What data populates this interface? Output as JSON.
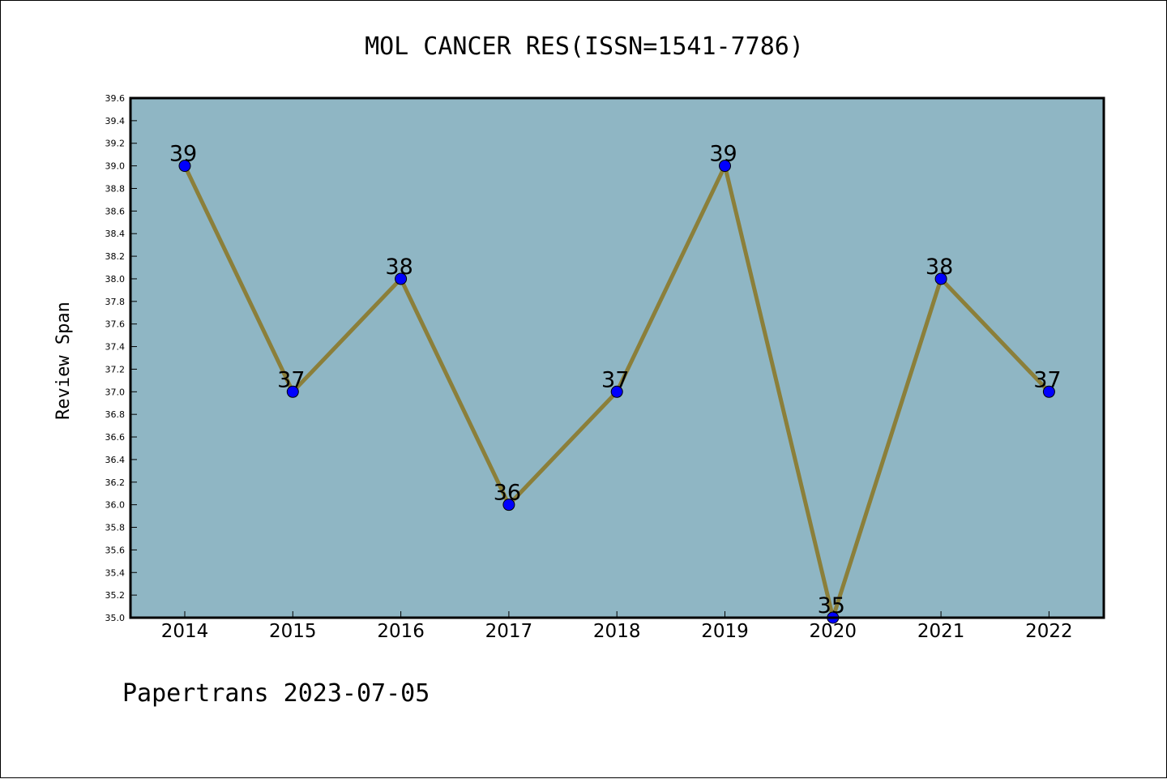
{
  "chart_data": {
    "type": "line",
    "title": "MOL CANCER RES(ISSN=1541-7786)",
    "xlabel": "",
    "ylabel": "Review Span",
    "categories": [
      "2014",
      "2015",
      "2016",
      "2017",
      "2018",
      "2019",
      "2020",
      "2021",
      "2022"
    ],
    "series": [
      {
        "values": [
          39,
          37,
          38,
          36,
          37,
          39,
          35,
          38,
          37
        ]
      }
    ],
    "data_labels": [
      "39",
      "37",
      "38",
      "36",
      "37",
      "39",
      "35",
      "38",
      "37"
    ],
    "ylim": [
      35.0,
      39.6
    ],
    "ytick_labels": [
      "35.0",
      "35.2",
      "35.4",
      "35.6",
      "35.8",
      "36.0",
      "36.2",
      "36.4",
      "36.6",
      "36.8",
      "37.0",
      "37.2",
      "37.4",
      "37.6",
      "37.8",
      "38.0",
      "38.2",
      "38.4",
      "38.6",
      "38.8",
      "39.0",
      "39.2",
      "39.4",
      "39.6"
    ],
    "grid": false,
    "colors": {
      "plot_background": "#8fb6c4",
      "line": "#8b7f3a",
      "marker": "#0000ff"
    }
  },
  "footer": "Papertrans 2023-07-05"
}
